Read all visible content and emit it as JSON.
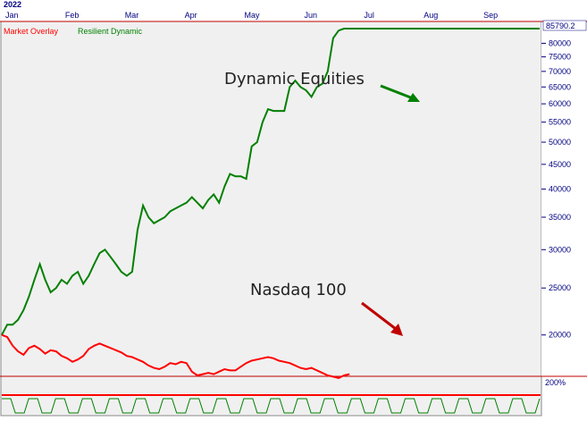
{
  "chart_data": {
    "type": "line",
    "year_label": "2022",
    "categories": [
      "Jan",
      "Feb",
      "Mar",
      "Apr",
      "May",
      "Jun",
      "Jul",
      "Aug",
      "Sep"
    ],
    "y_scale": "log",
    "ylim": [
      16500,
      88000
    ],
    "y_ticks": [
      20000,
      25000,
      30000,
      35000,
      40000,
      45000,
      50000,
      55000,
      60000,
      65000,
      70000,
      75000,
      80000
    ],
    "last_value": "85790.2",
    "legend": [
      {
        "label": "Market Overlay",
        "color": "#ff0000"
      },
      {
        "label": "Resilient Dynamic",
        "color": "#008000"
      }
    ],
    "annotations": [
      {
        "text": "Dynamic Equities",
        "arrow_color": "#008000"
      },
      {
        "text": "Nasdaq 100",
        "arrow_color": "#c00000"
      }
    ],
    "lower_panel": {
      "label": "200%"
    },
    "series": [
      {
        "name": "Resilient Dynamic",
        "color": "#008000",
        "x": [
          0,
          2,
          4,
          6,
          8,
          10,
          12,
          14,
          16,
          18,
          20,
          22,
          24,
          26,
          28,
          30,
          32,
          34,
          36,
          38,
          40,
          42,
          44,
          46,
          48,
          50,
          52,
          54,
          56,
          58,
          60,
          62,
          64,
          66,
          68,
          70,
          72,
          74,
          76,
          78,
          80,
          82,
          84,
          86,
          88,
          90,
          92,
          94,
          96,
          98,
          100,
          102,
          104,
          106,
          108,
          110,
          112,
          114,
          116,
          118,
          120,
          122,
          124,
          126,
          128,
          130,
          132,
          134,
          136,
          138,
          140,
          142,
          144,
          146,
          148,
          150,
          152,
          154,
          156,
          158,
          160,
          162,
          164,
          166,
          168,
          170,
          172,
          174,
          176,
          178,
          180,
          182,
          184,
          186,
          188,
          190,
          192,
          194,
          196,
          198
        ],
        "values": [
          20000,
          21000,
          21000,
          21500,
          22500,
          24000,
          26000,
          28000,
          26000,
          24500,
          25000,
          26000,
          25500,
          26500,
          27000,
          25500,
          26500,
          28000,
          29500,
          30000,
          29000,
          28000,
          27000,
          26500,
          27000,
          33000,
          37000,
          35000,
          34000,
          34500,
          35000,
          36000,
          36500,
          37000,
          37500,
          38500,
          37500,
          36500,
          38000,
          39000,
          37500,
          40500,
          43000,
          42500,
          42500,
          42000,
          49000,
          50000,
          55000,
          58500,
          58000,
          58000,
          58000,
          65000,
          67000,
          65000,
          64000,
          62000,
          65000,
          66000,
          70000,
          82000,
          85000,
          85800,
          85790.2,
          85790.2,
          85790.2,
          85790.2,
          85790.2,
          85790.2,
          85790.2,
          85790.2,
          85790.2,
          85790.2,
          85790.2,
          85790.2,
          85790.2,
          85790.2,
          85790.2,
          85790.2,
          85790.2,
          85790.2,
          85790.2,
          85790.2,
          85790.2,
          85790.2,
          85790.2,
          85790.2,
          85790.2,
          85790.2,
          85790.2,
          85790.2,
          85790.2,
          85790.2,
          85790.2,
          85790.2,
          85790.2,
          85790.2,
          85790.2,
          85790.2
        ]
      },
      {
        "name": "Market Overlay",
        "color": "#ff0000",
        "x": [
          0,
          2,
          4,
          6,
          8,
          10,
          12,
          14,
          16,
          18,
          20,
          22,
          24,
          26,
          28,
          30,
          32,
          34,
          36,
          38,
          40,
          42,
          44,
          46,
          48,
          50,
          52,
          54,
          56,
          58,
          60,
          62,
          64,
          66,
          68,
          70,
          72,
          74,
          76,
          78,
          80,
          82,
          84,
          86,
          88,
          90,
          92,
          94,
          96,
          98,
          100,
          102,
          104,
          106,
          108,
          110,
          112,
          114,
          116,
          118,
          120,
          122,
          124,
          126,
          128
        ],
        "values": [
          20000,
          19800,
          19000,
          18500,
          18200,
          18800,
          19000,
          18700,
          18300,
          18600,
          18500,
          18100,
          17900,
          17600,
          17800,
          18100,
          18700,
          19000,
          19200,
          19000,
          18800,
          18600,
          18400,
          18100,
          18000,
          17800,
          17600,
          17300,
          17100,
          17000,
          17200,
          17500,
          17400,
          17600,
          17500,
          16800,
          16500,
          16600,
          16700,
          16600,
          16800,
          17000,
          16900,
          16900,
          17200,
          17500,
          17700,
          17800,
          17900,
          18000,
          17900,
          17700,
          17600,
          17500,
          17300,
          17100,
          17000,
          17100,
          16900,
          16700,
          16500,
          16400,
          16300,
          16500,
          16600
        ]
      }
    ]
  }
}
